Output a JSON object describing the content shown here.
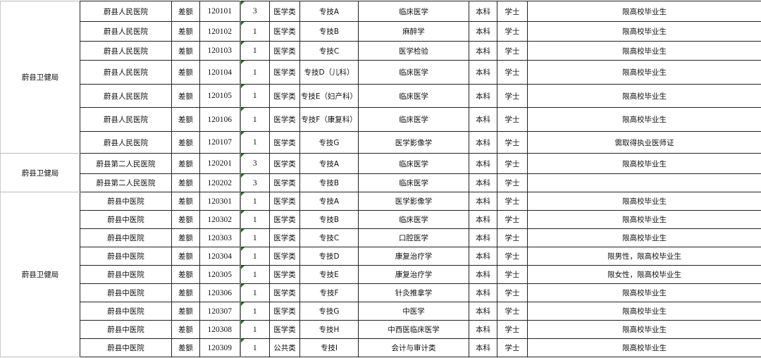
{
  "groups": [
    {
      "department": "蔚县卫健局",
      "rows": [
        {
          "unit": "蔚县人民医院",
          "funding": "差额",
          "code": "120101",
          "count": "3",
          "category": "医学类",
          "position": "专技A",
          "major": "临床医学",
          "education": "本科",
          "degree": "学士",
          "notes": "限高校毕业生"
        },
        {
          "unit": "蔚县人民医院",
          "funding": "差额",
          "code": "120102",
          "count": "1",
          "category": "医学类",
          "position": "专技B",
          "major": "麻醉学",
          "education": "本科",
          "degree": "学士",
          "notes": "限高校毕业生"
        },
        {
          "unit": "蔚县人民医院",
          "funding": "差额",
          "code": "120103",
          "count": "1",
          "category": "医学类",
          "position": "专技C",
          "major": "医学检验",
          "education": "本科",
          "degree": "学士",
          "notes": "限高校毕业生"
        },
        {
          "unit": "蔚县人民医院",
          "funding": "差额",
          "code": "120104",
          "count": "1",
          "category": "医学类",
          "position": "专技D（儿科）",
          "major": "临床医学",
          "education": "本科",
          "degree": "学士",
          "notes": "限高校毕业生"
        },
        {
          "unit": "蔚县人民医院",
          "funding": "差额",
          "code": "120105",
          "count": "1",
          "category": "医学类",
          "position": "专技E（妇产科）",
          "major": "临床医学",
          "education": "本科",
          "degree": "学士",
          "notes": "限高校毕业生"
        },
        {
          "unit": "蔚县人民医院",
          "funding": "差额",
          "code": "120106",
          "count": "1",
          "category": "医学类",
          "position": "专技F（康复科）",
          "major": "临床医学",
          "education": "本科",
          "degree": "学士",
          "notes": "限高校毕业生"
        },
        {
          "unit": "蔚县人民医院",
          "funding": "差额",
          "code": "120107",
          "count": "1",
          "category": "医学类",
          "position": "专技G",
          "major": "医学影像学",
          "education": "本科",
          "degree": "学士",
          "notes": "需取得执业医师证"
        }
      ]
    },
    {
      "department": "蔚县卫健局",
      "rows": [
        {
          "unit": "蔚县第二人民医院",
          "funding": "差额",
          "code": "120201",
          "count": "3",
          "category": "医学类",
          "position": "专技A",
          "major": "临床医学",
          "education": "本科",
          "degree": "学士",
          "notes": "限高校毕业生"
        },
        {
          "unit": "蔚县第二人民医院",
          "funding": "差额",
          "code": "120202",
          "count": "3",
          "category": "医学类",
          "position": "专技B",
          "major": "临床医学",
          "education": "本科",
          "degree": "学士",
          "notes": ""
        }
      ]
    },
    {
      "department": "蔚县卫健局",
      "rows": [
        {
          "unit": "蔚县中医院",
          "funding": "差额",
          "code": "120301",
          "count": "1",
          "category": "医学类",
          "position": "专技A",
          "major": "医学影像学",
          "education": "本科",
          "degree": "学士",
          "notes": "限高校毕业生"
        },
        {
          "unit": "蔚县中医院",
          "funding": "差额",
          "code": "120302",
          "count": "1",
          "category": "医学类",
          "position": "专技B",
          "major": "临床医学",
          "education": "本科",
          "degree": "学士",
          "notes": "限高校毕业生"
        },
        {
          "unit": "蔚县中医院",
          "funding": "差额",
          "code": "120303",
          "count": "1",
          "category": "医学类",
          "position": "专技C",
          "major": "口腔医学",
          "education": "本科",
          "degree": "学士",
          "notes": "限高校毕业生"
        },
        {
          "unit": "蔚县中医院",
          "funding": "差额",
          "code": "120304",
          "count": "1",
          "category": "医学类",
          "position": "专技D",
          "major": "康复治疗学",
          "education": "本科",
          "degree": "学士",
          "notes": "限男性，限高校毕业生"
        },
        {
          "unit": "蔚县中医院",
          "funding": "差额",
          "code": "120305",
          "count": "1",
          "category": "医学类",
          "position": "专技E",
          "major": "康复治疗学",
          "education": "本科",
          "degree": "学士",
          "notes": "限女性，限高校毕业生"
        },
        {
          "unit": "蔚县中医院",
          "funding": "差额",
          "code": "120306",
          "count": "1",
          "category": "医学类",
          "position": "专技F",
          "major": "针灸推拿学",
          "education": "本科",
          "degree": "学士",
          "notes": "限高校毕业生"
        },
        {
          "unit": "蔚县中医院",
          "funding": "差额",
          "code": "120307",
          "count": "1",
          "category": "医学类",
          "position": "专技G",
          "major": "中医学",
          "education": "本科",
          "degree": "学士",
          "notes": "限高校毕业生"
        },
        {
          "unit": "蔚县中医院",
          "funding": "差额",
          "code": "120308",
          "count": "1",
          "category": "医学类",
          "position": "专技H",
          "major": "中西医临床医学",
          "education": "本科",
          "degree": "学士",
          "notes": "限高校毕业生"
        },
        {
          "unit": "蔚县中医院",
          "funding": "差额",
          "code": "120309",
          "count": "1",
          "category": "公共类",
          "position": "专技I",
          "major": "会计与审计类",
          "education": "本科",
          "degree": "学士",
          "notes": "限高校毕业生"
        }
      ]
    }
  ]
}
